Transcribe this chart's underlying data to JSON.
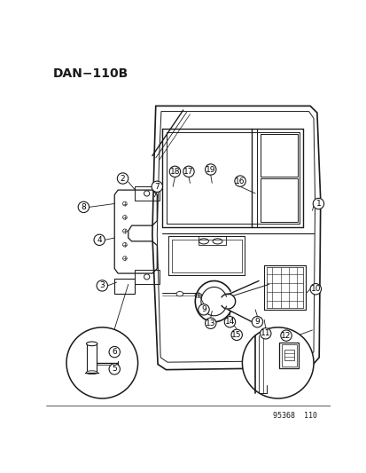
{
  "title": "DAN−110B",
  "catalog_number": "95368  110",
  "bg_color": "#ffffff",
  "line_color": "#1a1a1a",
  "fig_width": 4.14,
  "fig_height": 5.33,
  "dpi": 100
}
